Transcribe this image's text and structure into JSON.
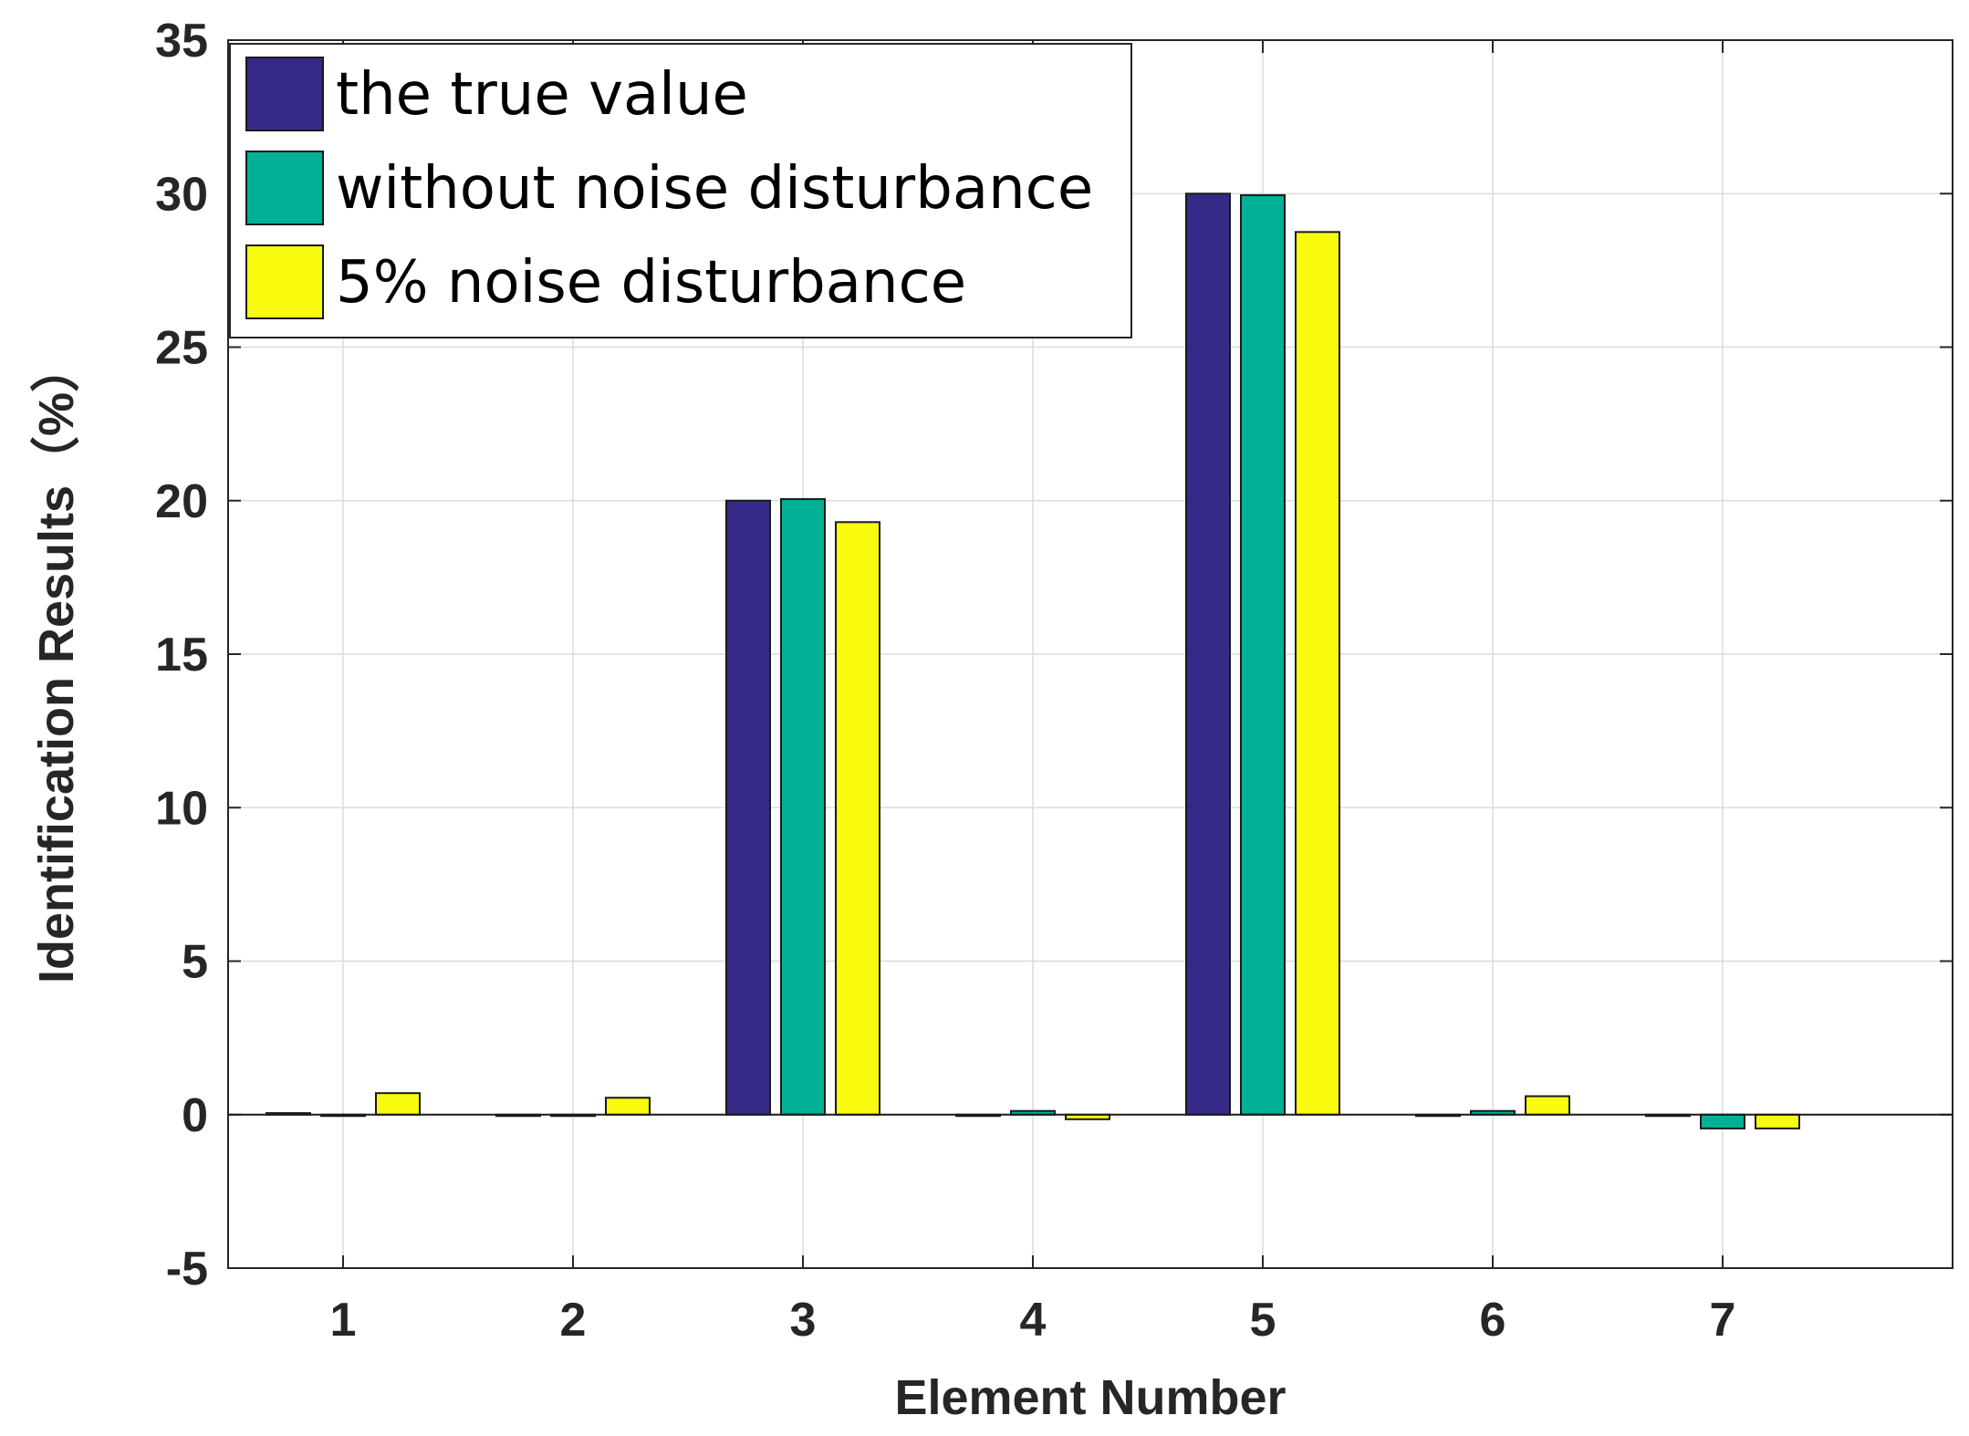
{
  "chart_data": {
    "type": "bar",
    "title": "",
    "xlabel": "Element Number",
    "ylabel": "Identification Results（%）",
    "categories": [
      "1",
      "2",
      "3",
      "4",
      "5",
      "6",
      "7"
    ],
    "yticks": [
      "-5",
      "0",
      "5",
      "10",
      "15",
      "20",
      "25",
      "30",
      "35"
    ],
    "ylim": [
      -5,
      35
    ],
    "grid": true,
    "legend_position": "top-left",
    "series": [
      {
        "name": "the true value",
        "color": "#352A87",
        "values": [
          0.05,
          0,
          20,
          0,
          30,
          0,
          0
        ]
      },
      {
        "name": "without noise disturbance",
        "color": "#00B196",
        "values": [
          0,
          0,
          20.05,
          0.12,
          29.95,
          0.12,
          -0.45
        ]
      },
      {
        "name": "5% noise disturbance",
        "color": "#F9FB0E",
        "values": [
          0.7,
          0.55,
          19.3,
          -0.15,
          28.75,
          0.6,
          -0.45
        ]
      }
    ]
  }
}
